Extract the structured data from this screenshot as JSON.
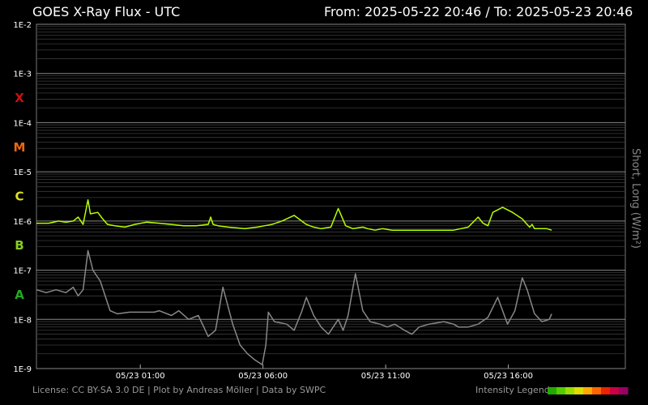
{
  "header": {
    "title": "GOES X-Ray Flux - UTC",
    "range": "From: 2025-05-22 20:46  /  To: 2025-05-23 20:46"
  },
  "footer": {
    "license": "License: CC BY-SA 3.0 DE | Plot by Andreas Möller | Data by SWPC",
    "legend_label": "Intensity Legend",
    "legend_colors": [
      "#22aa00",
      "#55cc00",
      "#99dd00",
      "#dddd00",
      "#ffaa00",
      "#ff6600",
      "#ee2200",
      "#cc0044",
      "#990066"
    ]
  },
  "colors": {
    "short": "#b5ff00",
    "long": "#888888",
    "X": "#cc1111",
    "M": "#ee6611",
    "C": "#dddd22",
    "B": "#88cc22",
    "A": "#22aa22"
  },
  "chart_data": {
    "type": "line",
    "yscale": "log",
    "ylim": [
      1e-09,
      0.01
    ],
    "ylabel": "Short, Long (W/m²)",
    "y_tick_labels": [
      "1E-2",
      "1E-3",
      "1E-4",
      "1E-5",
      "1E-6",
      "1E-7",
      "1E-8",
      "1E-9"
    ],
    "x_tick_labels": [
      "05/23 01:00",
      "05/23 06:00",
      "05/23 11:00",
      "05/23 16:00"
    ],
    "x_ticks_hours": [
      4.233,
      9.233,
      14.233,
      19.233
    ],
    "xlim_hours": [
      0,
      24
    ],
    "x_unit": "hours since 2025-05-22 20:46",
    "flare_classes": [
      "X",
      "M",
      "C",
      "B",
      "A"
    ],
    "series": [
      {
        "name": "Short",
        "color": "#b5ff00",
        "x": [
          0,
          0.5,
          0.9,
          1.2,
          1.5,
          1.7,
          1.9,
          2.1,
          2.2,
          2.5,
          2.7,
          2.9,
          3.2,
          3.6,
          4,
          4.5,
          5,
          5.5,
          6,
          6.5,
          7,
          7.1,
          7.2,
          7.4,
          7.8,
          8.5,
          9,
          9.3,
          9.6,
          10,
          10.5,
          11,
          11.3,
          11.6,
          12,
          12.3,
          12.6,
          12.9,
          13.3,
          13.5,
          13.8,
          14.1,
          14.5,
          15,
          16,
          17,
          17.6,
          18,
          18.2,
          18.4,
          18.6,
          19,
          19.4,
          19.8,
          20,
          20.1,
          20.2,
          20.3,
          20.5,
          20.8,
          21
        ],
        "y": [
          9e-07,
          9e-07,
          1e-06,
          9.5e-07,
          1e-06,
          1.2e-06,
          8.5e-07,
          2.7e-06,
          1.4e-06,
          1.5e-06,
          1.1e-06,
          8.5e-07,
          8e-07,
          7.5e-07,
          8.5e-07,
          9.5e-07,
          9e-07,
          8.5e-07,
          8e-07,
          8e-07,
          8.5e-07,
          1.2e-06,
          8.5e-07,
          8e-07,
          7.5e-07,
          7e-07,
          7.5e-07,
          8e-07,
          8.5e-07,
          1e-06,
          1.3e-06,
          8.5e-07,
          7.5e-07,
          7e-07,
          7.5e-07,
          1.8e-06,
          8e-07,
          7e-07,
          7.5e-07,
          7e-07,
          6.5e-07,
          7e-07,
          6.5e-07,
          6.5e-07,
          6.5e-07,
          6.5e-07,
          7.5e-07,
          1.2e-06,
          9e-07,
          8e-07,
          1.5e-06,
          1.9e-06,
          1.5e-06,
          1.1e-06,
          8.5e-07,
          7.5e-07,
          8.5e-07,
          7e-07,
          7e-07,
          7e-07,
          6.5e-07
        ]
      },
      {
        "name": "Long",
        "color": "#888888",
        "x": [
          0,
          0.4,
          0.8,
          1.2,
          1.5,
          1.7,
          1.9,
          2.1,
          2.3,
          2.6,
          3.0,
          3.3,
          3.8,
          4.3,
          4.8,
          5.0,
          5.5,
          5.8,
          6.2,
          6.6,
          7.0,
          7.3,
          7.6,
          8.0,
          8.3,
          8.6,
          8.9,
          9.2,
          9.35,
          9.45,
          9.7,
          10.2,
          10.5,
          10.8,
          11.0,
          11.3,
          11.6,
          11.9,
          12.3,
          12.5,
          12.7,
          13.0,
          13.3,
          13.6,
          14.0,
          14.3,
          14.6,
          15.0,
          15.3,
          15.6,
          16.0,
          16.6,
          17.0,
          17.2,
          17.6,
          18.0,
          18.4,
          18.8,
          19.2,
          19.5,
          19.8,
          20.0,
          20.3,
          20.6,
          20.9,
          21.0
        ],
        "y": [
          4e-08,
          3.5e-08,
          4e-08,
          3.5e-08,
          4.5e-08,
          3e-08,
          4e-08,
          2.5e-07,
          1e-07,
          6e-08,
          1.5e-08,
          1.3e-08,
          1.4e-08,
          1.4e-08,
          1.4e-08,
          1.5e-08,
          1.2e-08,
          1.5e-08,
          1e-08,
          1.2e-08,
          4.5e-09,
          6e-09,
          4.5e-08,
          8e-09,
          3e-09,
          2e-09,
          1.5e-09,
          1.2e-09,
          3e-09,
          1.4e-08,
          9e-09,
          8e-09,
          6e-09,
          1.4e-08,
          2.8e-08,
          1.2e-08,
          7e-09,
          5e-09,
          1e-08,
          6e-09,
          1.2e-08,
          8.5e-08,
          1.5e-08,
          9e-09,
          8e-09,
          7e-09,
          8e-09,
          6e-09,
          5e-09,
          7e-09,
          8e-09,
          9e-09,
          8e-09,
          7e-09,
          7e-09,
          8e-09,
          1.1e-08,
          2.8e-08,
          8e-09,
          1.5e-08,
          7e-08,
          4e-08,
          1.3e-08,
          9e-09,
          1e-08,
          1.3e-08
        ]
      }
    ]
  }
}
